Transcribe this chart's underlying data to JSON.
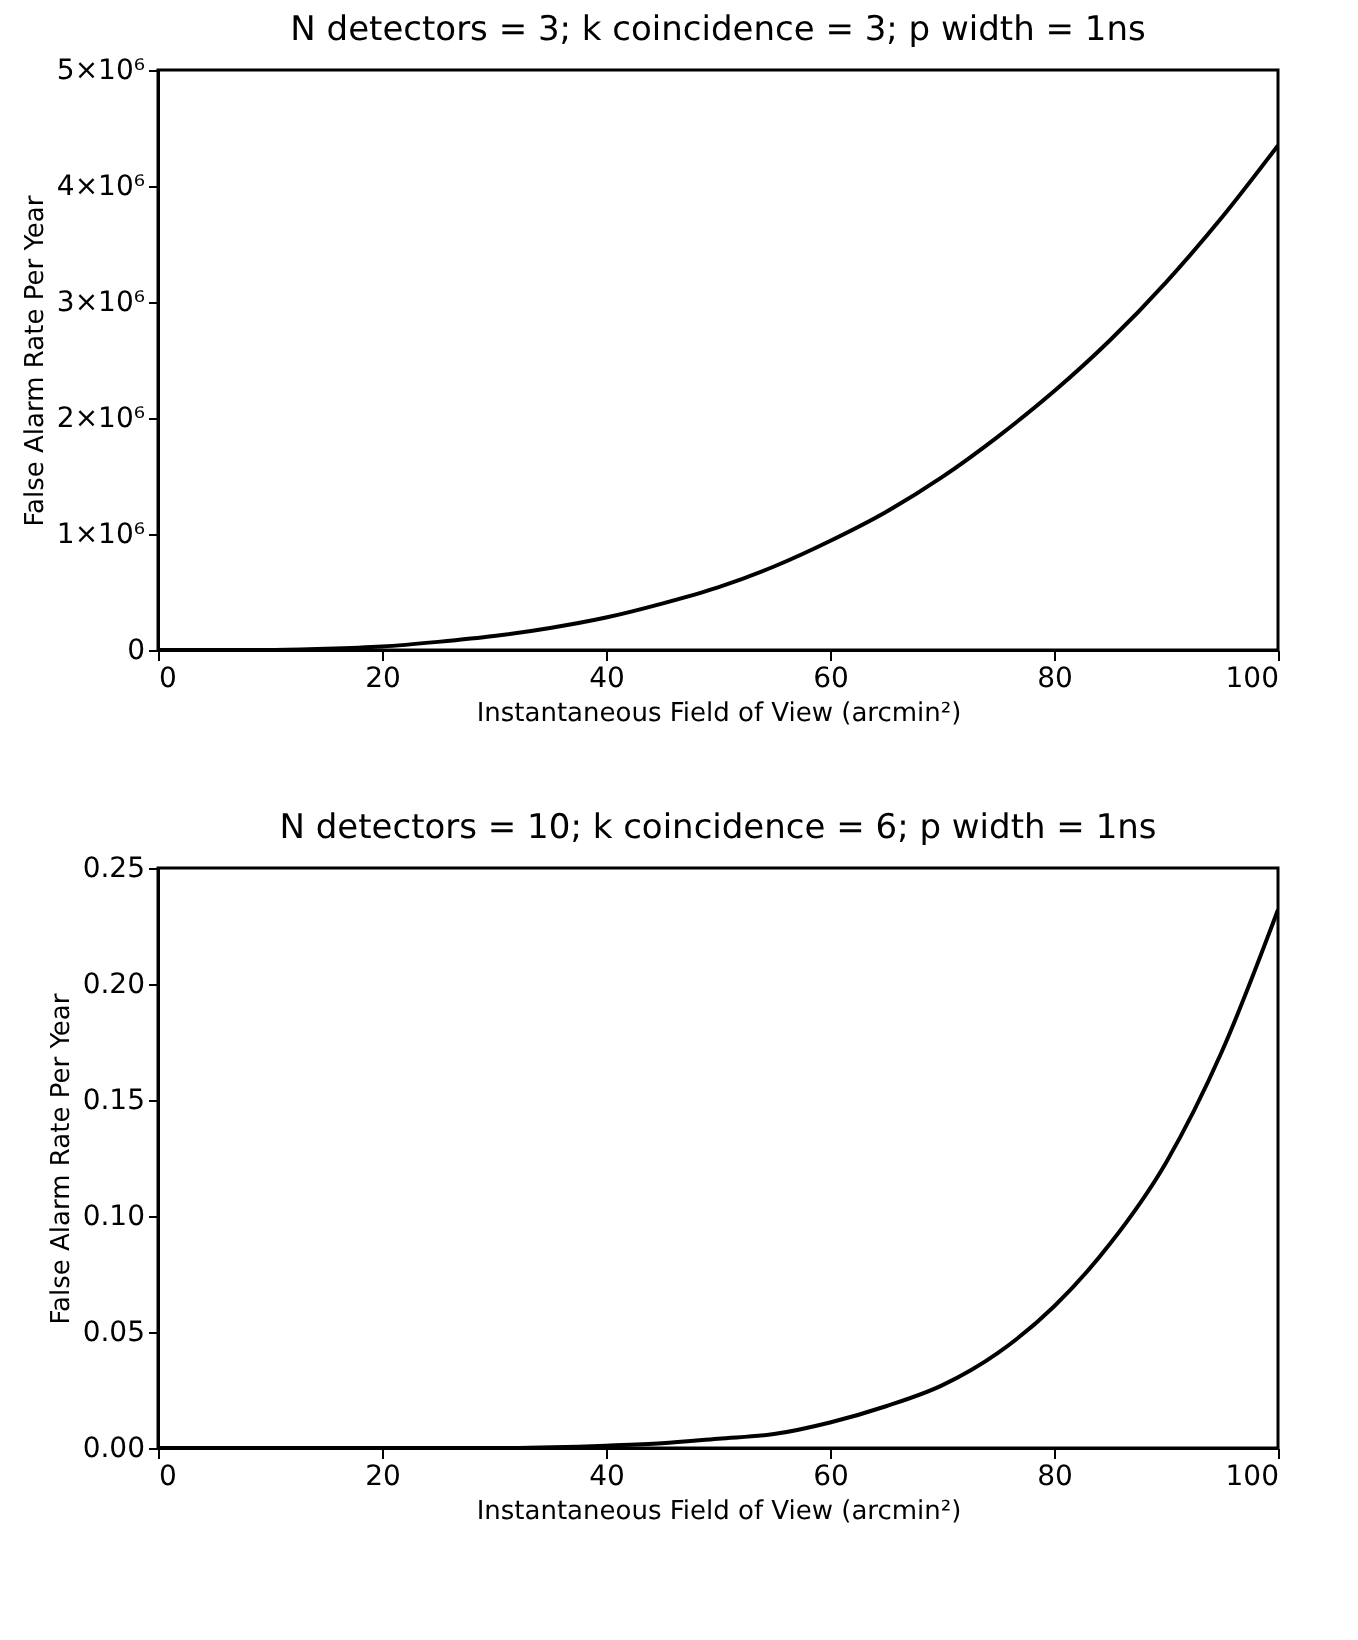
{
  "chart_data": [
    {
      "type": "line",
      "title": "N detectors = 3; k coincidence = 3; p width = 1ns",
      "xlabel": "Instantaneous Field of View (arcmin²)",
      "ylabel": "False Alarm Rate Per Year",
      "x": [
        0,
        5,
        10,
        15,
        20,
        25,
        30,
        35,
        40,
        45,
        50,
        55,
        60,
        65,
        70,
        75,
        80,
        85,
        90,
        95,
        100
      ],
      "series": [
        {
          "color": "#000000",
          "values": [
            0,
            0,
            0,
            10000,
            30000,
            70000,
            120000,
            190000,
            280000,
            400000,
            540000,
            720000,
            940000,
            1190000,
            1490000,
            1840000,
            2230000,
            2670000,
            3170000,
            3730000,
            4350000
          ]
        }
      ],
      "xlim": [
        0,
        100
      ],
      "xticks": [
        0,
        20,
        40,
        60,
        80,
        100
      ],
      "ylim": [
        0,
        5000000
      ],
      "yticks": [
        {
          "value": 0,
          "label": "0"
        },
        {
          "value": 1000000,
          "label": "1×10⁶"
        },
        {
          "value": 2000000,
          "label": "2×10⁶"
        },
        {
          "value": 3000000,
          "label": "3×10⁶"
        },
        {
          "value": 4000000,
          "label": "4×10⁶"
        },
        {
          "value": 5000000,
          "label": "5×10⁶"
        }
      ],
      "grid": false,
      "marker": "none",
      "line_style": "solid"
    },
    {
      "type": "line",
      "title": "N detectors = 10; k coincidence = 6; p width = 1ns",
      "xlabel": "Instantaneous Field of View (arcmin²)",
      "ylabel": "False Alarm Rate Per Year",
      "x": [
        0,
        10,
        20,
        30,
        40,
        45,
        50,
        55,
        60,
        65,
        70,
        75,
        80,
        85,
        90,
        95,
        100
      ],
      "series": [
        {
          "color": "#000000",
          "values": [
            0,
            0,
            0,
            0,
            0.001,
            0.002,
            0.004,
            0.006,
            0.011,
            0.018,
            0.027,
            0.041,
            0.061,
            0.088,
            0.123,
            0.171,
            0.232
          ]
        }
      ],
      "xlim": [
        0,
        100
      ],
      "xticks": [
        0,
        20,
        40,
        60,
        80,
        100
      ],
      "ylim": [
        0,
        0.25
      ],
      "yticks": [
        {
          "value": 0,
          "label": "0.00"
        },
        {
          "value": 0.05,
          "label": "0.05"
        },
        {
          "value": 0.1,
          "label": "0.10"
        },
        {
          "value": 0.15,
          "label": "0.15"
        },
        {
          "value": 0.2,
          "label": "0.20"
        },
        {
          "value": 0.25,
          "label": "0.25"
        }
      ],
      "grid": false,
      "marker": "none",
      "line_style": "solid"
    }
  ]
}
